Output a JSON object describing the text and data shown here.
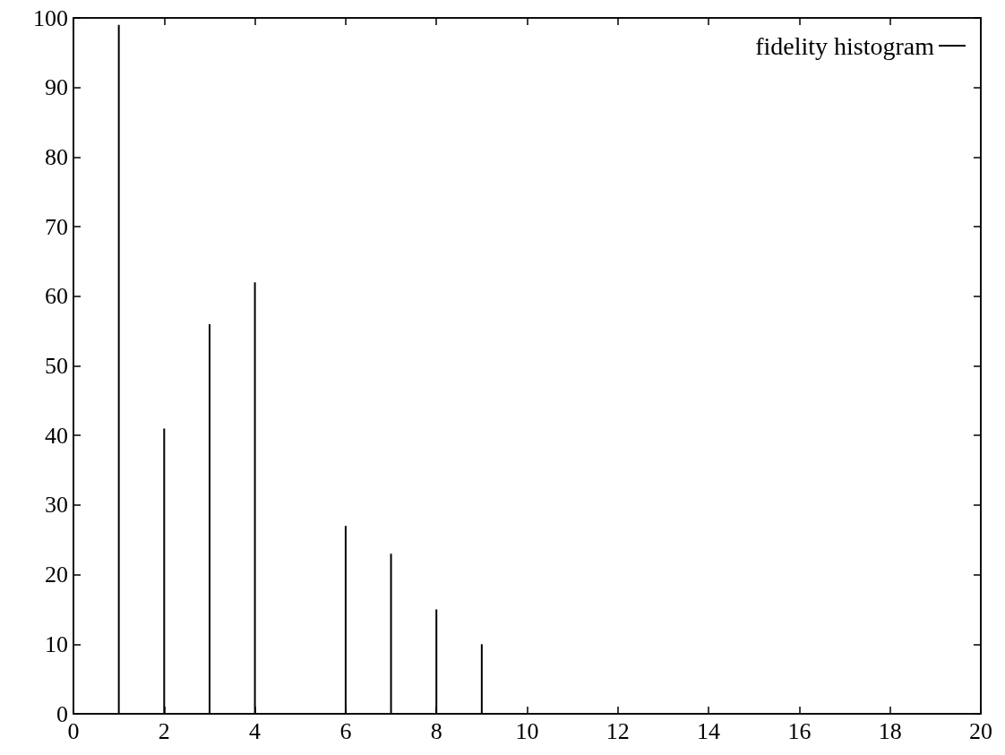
{
  "chart_data": {
    "type": "bar",
    "x": [
      1,
      2,
      3,
      4,
      6,
      7,
      8,
      9
    ],
    "series": [
      {
        "name": "fidelity histogram",
        "color": "#000000",
        "values": [
          99,
          41,
          56,
          62,
          27,
          23,
          15,
          10
        ]
      }
    ],
    "xlim": [
      0,
      20
    ],
    "xticks": [
      0,
      2,
      4,
      6,
      8,
      10,
      12,
      14,
      16,
      18,
      20
    ],
    "ylim": [
      0,
      100
    ],
    "yticks": [
      0,
      10,
      20,
      30,
      40,
      50,
      60,
      70,
      80,
      90,
      100
    ],
    "grid": false,
    "legend": "top right"
  }
}
